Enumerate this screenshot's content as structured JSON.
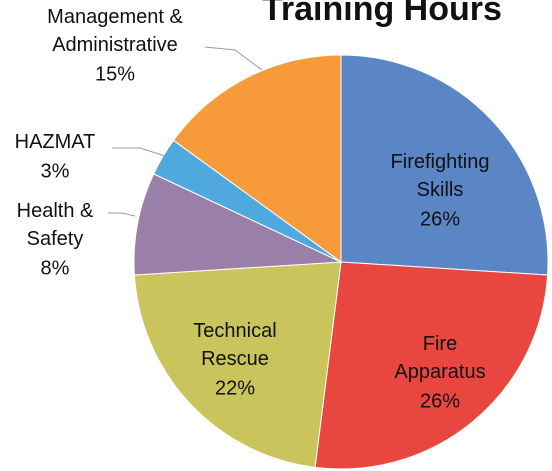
{
  "chart_data": {
    "type": "pie",
    "title": "Training Hours",
    "categories": [
      "Firefighting Skills",
      "Fire Apparatus",
      "Technical Rescue",
      "Health & Safety",
      "HAZMAT",
      "Management & Administrative"
    ],
    "values": [
      26,
      26,
      22,
      8,
      3,
      15
    ],
    "value_labels": [
      "26%",
      "26%",
      "22%",
      "8%",
      "3%",
      "15%"
    ],
    "colors": [
      "#5b86c5",
      "#e8463e",
      "#c9c55c",
      "#9a80a8",
      "#4fa9de",
      "#f79a3a"
    ]
  }
}
